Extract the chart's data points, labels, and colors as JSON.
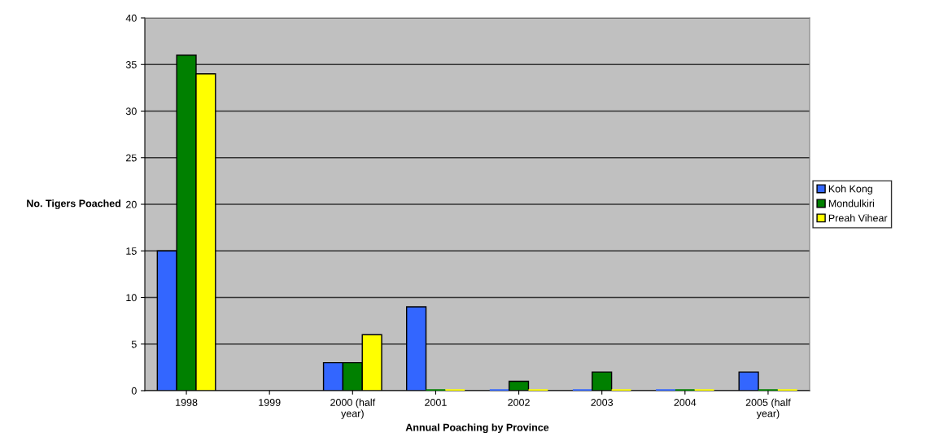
{
  "chart_data": {
    "type": "bar",
    "xlabel": "Annual Poaching by Province",
    "ylabel": "No. Tigers Poached",
    "categories": [
      "1998",
      "1999",
      "2000 (half\nyear)",
      "2001",
      "2002",
      "2003",
      "2004",
      "2005 (half\nyear)"
    ],
    "series": [
      {
        "name": "Koh Kong",
        "color": "#3366ff",
        "values": [
          15,
          null,
          3,
          9,
          0,
          0,
          0,
          2
        ]
      },
      {
        "name": "Mondulkiri",
        "color": "#008000",
        "values": [
          36,
          null,
          3,
          0,
          1,
          2,
          0,
          0
        ]
      },
      {
        "name": "Preah Vihear",
        "color": "#ffff00",
        "values": [
          34,
          null,
          6,
          0,
          0,
          0,
          0,
          0
        ]
      }
    ],
    "ylim": [
      0,
      40
    ],
    "yticks": [
      0,
      5,
      10,
      15,
      20,
      25,
      30,
      35,
      40
    ],
    "grid": "y",
    "legend": "right"
  }
}
